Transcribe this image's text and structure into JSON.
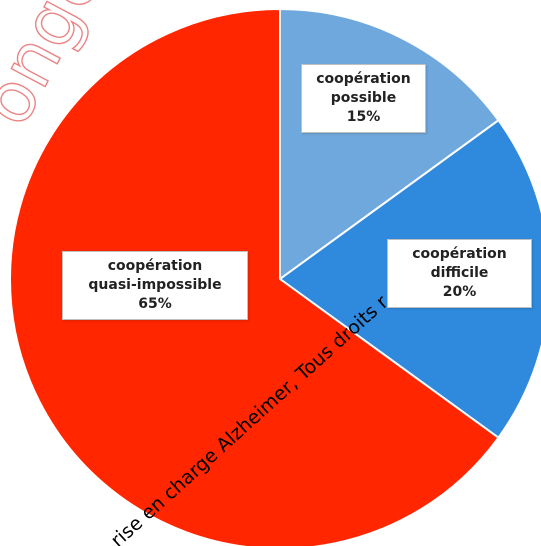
{
  "chart_data": {
    "type": "pie",
    "start_angle_deg": 0,
    "direction": "clockwise",
    "slices": [
      {
        "label": "coopération possible",
        "label_lines": [
          "coopération",
          "possible"
        ],
        "value": 15,
        "value_label": "15%",
        "color": "#6fa8dc"
      },
      {
        "label": "coopération difficile",
        "label_lines": [
          "coopération",
          "difficile"
        ],
        "value": 20,
        "value_label": "20%",
        "color": "#2f8ade"
      },
      {
        "label": "coopération quasi-impossible",
        "label_lines": [
          "coopération",
          "quasi-impossible"
        ],
        "value": 65,
        "value_label": "65%",
        "color": "#ff2600"
      }
    ],
    "slice_border_color": "#ffffff",
    "legend": "none"
  },
  "watermark": {
    "lines": [
      "ongen",
      "rise en charge Alzheimer, Tous droits r"
    ],
    "color": "#d92020"
  }
}
